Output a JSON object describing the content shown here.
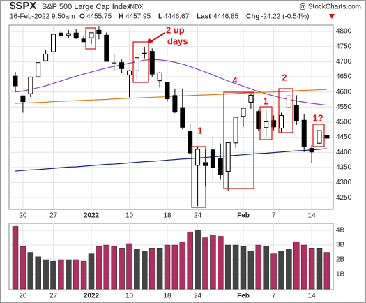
{
  "chart_data": [
    {
      "type": "candlestick",
      "symbol": "$SPX",
      "title": "S&P 500 Large Cap Index",
      "exchange": "INDX",
      "source": "@ StockCharts.com",
      "timestamp": "16-Feb-2022 9:50am",
      "quote_labels": [
        "O",
        "H",
        "L",
        "Last",
        "Chg"
      ],
      "change": "-24.22 (-0.54%)",
      "categories": [
        null,
        "20",
        null,
        null,
        null,
        "27",
        null,
        null,
        null,
        null,
        "2022",
        null,
        null,
        null,
        null,
        "10",
        null,
        null,
        null,
        null,
        "18",
        null,
        null,
        null,
        "24",
        null,
        null,
        null,
        null,
        null,
        "Feb",
        null,
        null,
        null,
        "7",
        null,
        null,
        null,
        null,
        "14",
        null,
        null
      ],
      "open": [
        4652,
        4587,
        4594,
        4650,
        4703,
        4733,
        4795,
        4788,
        4795,
        4775,
        4779,
        4804,
        4788,
        4693,
        4697,
        4656,
        4670,
        4728,
        4734,
        4637,
        4632,
        4588,
        4548,
        4471,
        4357,
        4366,
        4408,
        4380,
        4337,
        4431,
        4519,
        4566,
        4535,
        4482,
        4505,
        4480,
        4548,
        4554,
        4506,
        4413,
        4430,
        4455.75
      ],
      "high": [
        4666,
        4588,
        4651,
        4697,
        4740,
        4791,
        4807,
        4805,
        4808,
        4787,
        4796,
        4818,
        4797,
        4725,
        4707,
        4672,
        4714,
        4749,
        4744,
        4666,
        4632,
        4611,
        4611,
        4494,
        4418,
        4411,
        4453,
        4429,
        4432,
        4516,
        4546,
        4596,
        4542,
        4540,
        4522,
        4531,
        4590,
        4589,
        4527,
        4426,
        4472,
        4457.95
      ],
      "low": [
        4600,
        4531,
        4583,
        4645,
        4703,
        4733,
        4780,
        4778,
        4775,
        4766,
        4758,
        4774,
        4700,
        4671,
        4662,
        4582,
        4638,
        4711,
        4650,
        4614,
        4568,
        4530,
        4476,
        4395,
        4222,
        4287,
        4305,
        4309,
        4273,
        4415,
        4484,
        4544,
        4470,
        4452,
        4473,
        4466,
        4548,
        4491,
        4401,
        4364,
        4428,
        4446.67
      ],
      "close": [
        4620,
        4568,
        4649,
        4697,
        4725,
        4791,
        4786,
        4793,
        4778,
        4766,
        4796,
        4794,
        4701,
        4696,
        4677,
        4670,
        4713,
        4726,
        4659,
        4663,
        4577,
        4533,
        4483,
        4398,
        4410,
        4356,
        4350,
        4327,
        4432,
        4516,
        4546,
        4589,
        4478,
        4501,
        4484,
        4522,
        4587,
        4504,
        4419,
        4401,
        4472,
        4446.85
      ],
      "series": [
        {
          "color": "#8a3fd1",
          "values": [
            4600,
            4603,
            4608,
            4614,
            4620,
            4628,
            4636,
            4644,
            4652,
            4659,
            4666,
            4673,
            4679,
            4685,
            4690,
            4695,
            4700,
            4705,
            4707,
            4706,
            4703,
            4698,
            4692,
            4684,
            4675,
            4666,
            4656,
            4646,
            4636,
            4627,
            4619,
            4610,
            4601,
            4594,
            4587,
            4580,
            4575,
            4570,
            4566,
            4562,
            4559,
            4556
          ]
        },
        {
          "color": "#e07b1a",
          "values": [
            4562,
            4563,
            4564,
            4565,
            4566,
            4568,
            4569,
            4570,
            4571,
            4572,
            4573,
            4574,
            4575,
            4577,
            4578,
            4579,
            4580,
            4581,
            4582,
            4583,
            4584,
            4586,
            4587,
            4588,
            4589,
            4590,
            4591,
            4592,
            4593,
            4595,
            4596,
            4597,
            4598,
            4599,
            4600,
            4601,
            4602,
            4604,
            4605,
            4606,
            4607,
            4608
          ]
        },
        {
          "color": "#1a237e",
          "values": [
            4338,
            4340,
            4342,
            4343,
            4345,
            4347,
            4349,
            4351,
            4352,
            4354,
            4356,
            4358,
            4360,
            4361,
            4363,
            4365,
            4367,
            4369,
            4370,
            4372,
            4374,
            4376,
            4378,
            4379,
            4381,
            4383,
            4385,
            4387,
            4388,
            4390,
            4392,
            4394,
            4396,
            4397,
            4399,
            4401,
            4403,
            4405,
            4406,
            4408,
            4410,
            4412
          ]
        }
      ],
      "ylim": [
        4211,
        4821
      ],
      "yticks": [
        4250,
        4300,
        4350,
        4400,
        4450,
        4500,
        4550,
        4600,
        4650,
        4700,
        4750,
        4800
      ],
      "grid": true,
      "annotations": [
        "2 up",
        "days",
        "1",
        "4",
        "1",
        "2",
        "1?"
      ]
    },
    {
      "type": "volume",
      "values": [
        4.3,
        2.9,
        2.5,
        2.2,
        2.0,
        1.9,
        2.0,
        2.0,
        2.0,
        1.9,
        2.4,
        2.9,
        3.0,
        2.9,
        2.8,
        3.1,
        2.7,
        2.6,
        2.8,
        2.8,
        3.0,
        3.0,
        3.2,
        3.9,
        4.0,
        3.5,
        3.7,
        3.6,
        3.0,
        3.0,
        2.9,
        2.6,
        3.0,
        2.9,
        2.4,
        2.6,
        2.7,
        3.2,
        3.0,
        2.8,
        2.8,
        2.5
      ],
      "up_color": "#444444",
      "down_color": "#b03060",
      "ylim": [
        0,
        4.48
      ],
      "yticks": [
        {
          "value": 1,
          "label": "1B"
        },
        {
          "value": 2,
          "label": "2B"
        },
        {
          "value": 3,
          "label": "3B"
        },
        {
          "value": 4,
          "label": "4B"
        }
      ],
      "grid": true
    }
  ]
}
